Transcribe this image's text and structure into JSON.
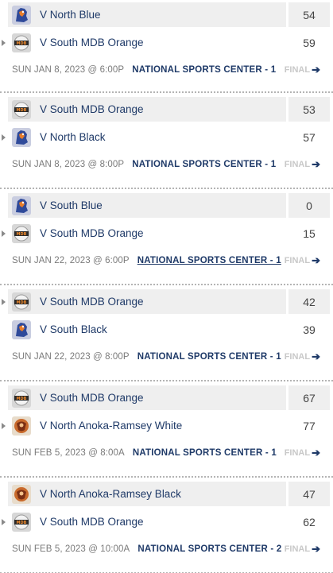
{
  "games": [
    {
      "home": {
        "name": "V North Blue",
        "score": "54",
        "logo": "mustangs-logo",
        "arrow": false
      },
      "away": {
        "name": "V South MDB Orange",
        "score": "59",
        "logo": "mdb-logo",
        "arrow": true
      },
      "datetime": "SUN JAN 8, 2023 @ 6:00P",
      "venue": "NATIONAL SPORTS CENTER - 1",
      "status": "FINAL"
    },
    {
      "home": {
        "name": "V South MDB Orange",
        "score": "53",
        "logo": "mdb-logo",
        "arrow": false
      },
      "away": {
        "name": "V North Black",
        "score": "57",
        "logo": "mustangs-logo",
        "arrow": true
      },
      "datetime": "SUN JAN 8, 2023 @ 8:00P",
      "venue": "NATIONAL SPORTS CENTER - 1",
      "status": "FINAL"
    },
    {
      "home": {
        "name": "V South Blue",
        "score": "0",
        "logo": "mustangs-logo",
        "arrow": false
      },
      "away": {
        "name": "V South MDB Orange",
        "score": "15",
        "logo": "mdb-logo",
        "arrow": true
      },
      "datetime": "SUN JAN 22, 2023 @ 6:00P",
      "venue": "NATIONAL SPORTS CENTER - 1",
      "status": "FINAL"
    },
    {
      "home": {
        "name": "V South MDB Orange",
        "score": "42",
        "logo": "mdb-logo",
        "arrow": true
      },
      "away": {
        "name": "V South Black",
        "score": "39",
        "logo": "mustangs-logo",
        "arrow": false
      },
      "datetime": "SUN JAN 22, 2023 @ 8:00P",
      "venue": "NATIONAL SPORTS CENTER - 1",
      "status": "FINAL"
    },
    {
      "home": {
        "name": "V South MDB Orange",
        "score": "67",
        "logo": "mdb-logo",
        "arrow": false
      },
      "away": {
        "name": "V North Anoka-Ramsey White",
        "score": "77",
        "logo": "anoka-ramsey-logo",
        "arrow": true
      },
      "datetime": "SUN FEB 5, 2023 @ 8:00A",
      "venue": "NATIONAL SPORTS CENTER - 1",
      "status": "FINAL"
    },
    {
      "home": {
        "name": "V North Anoka-Ramsey Black",
        "score": "47",
        "logo": "anoka-ramsey-logo",
        "arrow": false
      },
      "away": {
        "name": "V South MDB Orange",
        "score": "62",
        "logo": "mdb-logo",
        "arrow": true
      },
      "datetime": "SUN FEB 5, 2023 @ 10:00A",
      "venue": "NATIONAL SPORTS CENTER - 2",
      "status": "FINAL"
    }
  ],
  "colors": {
    "team_text": "#1f3a68",
    "row_shade": "#efefef",
    "meta_text": "#7a7a7a",
    "final_text": "#c8c8c8",
    "separator": "#b4b4b4"
  }
}
